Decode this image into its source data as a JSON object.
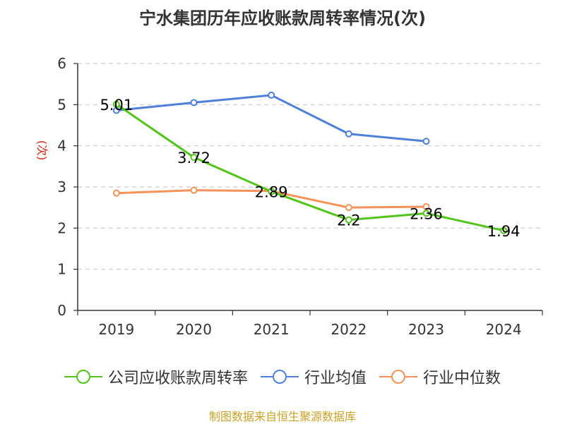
{
  "chart_data": {
    "type": "line",
    "title": "宁水集团历年应收账款周转率情况(次)",
    "ylabel": "(次)",
    "categories": [
      "2019",
      "2020",
      "2021",
      "2022",
      "2023",
      "2024"
    ],
    "ylim": [
      0,
      6
    ],
    "yticks": [
      "0",
      "1",
      "2",
      "3",
      "4",
      "5",
      "6"
    ],
    "grid": true,
    "legend_position": "bottom",
    "series": [
      {
        "name": "公司应收账款周转率",
        "color": "#52c41a",
        "values": [
          5.01,
          3.72,
          2.89,
          2.2,
          2.36,
          1.94
        ],
        "labels": [
          "5.01",
          "3.72",
          "2.89",
          "2.2",
          "2.36",
          "1.94"
        ]
      },
      {
        "name": "行业均值",
        "color": "#4e7fd9",
        "values": [
          4.86,
          5.05,
          5.23,
          4.29,
          4.11,
          null
        ]
      },
      {
        "name": "行业中位数",
        "color": "#f5925a",
        "values": [
          2.85,
          2.92,
          2.9,
          2.5,
          2.52,
          null
        ]
      }
    ]
  },
  "footer": "制图数据来自恒生聚源数据库"
}
